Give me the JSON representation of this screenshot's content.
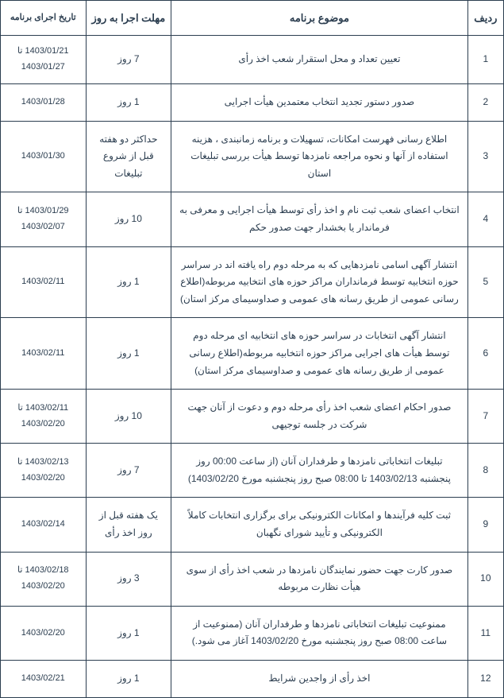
{
  "headers": {
    "num": "ردیف",
    "subject": "موضوع برنامه",
    "deadline": "مهلت اجرا به روز",
    "date": "تاریخ اجرای برنامه"
  },
  "rows": [
    {
      "num": "1",
      "subject": "تعیین تعداد و محل استقرار شعب اخذ رأی",
      "deadline": "7 روز",
      "date": "1403/01/21 تا 1403/01/27"
    },
    {
      "num": "2",
      "subject": "صدور دستور تجدید انتخاب معتمدین هیأت اجرایی",
      "deadline": "1 روز",
      "date": "1403/01/28"
    },
    {
      "num": "3",
      "subject": "اطلاع رسانی فهرست امکانات، تسهیلات و برنامه زمانبندی ، هزینه استفاده از آنها و نحوه مراجعه نامزدها توسط هیأت بررسی تبلیغات استان",
      "deadline": "حداکثر دو هفته قبل از شروع تبلیغات",
      "date": "1403/01/30"
    },
    {
      "num": "4",
      "subject": "انتخاب اعضای شعب ثبت نام و اخذ رأی توسط هیأت اجرایی و معرفی به فرماندار یا بخشدار جهت صدور حکم",
      "deadline": "10 روز",
      "date": "1403/01/29 تا 1403/02/07"
    },
    {
      "num": "5",
      "subject": "انتشار آگهی اسامی نامزدهایی که به مرحله دوم راه یافته اند در سراسر حوزه انتخابیه توسط فرمانداران مراکز حوزه های انتخابیه مربوطه(اطلاع رسانی عمومی از طریق رسانه های عمومی و صداوسیمای مرکز استان)",
      "deadline": "1 روز",
      "date": "1403/02/11"
    },
    {
      "num": "6",
      "subject": "انتشار آگهی انتخابات در سراسر حوزه های انتخابیه ای مرحله دوم توسط هیأت های اجرایی مراکز حوزه انتخابیه مربوطه(اطلاع رسانی عمومی از طریق رسانه های عمومی و صداوسیمای مرکز استان)",
      "deadline": "1 روز",
      "date": "1403/02/11"
    },
    {
      "num": "7",
      "subject": "صدور احکام اعضای شعب اخذ رأی مرحله دوم و دعوت از آنان جهت شرکت در جلسه توجیهی",
      "deadline": "10 روز",
      "date": "1403/02/11 تا 1403/02/20"
    },
    {
      "num": "8",
      "subject": "تبلیغات انتخاباتی نامزدها و طرفداران آنان (از ساعت 00:00 روز پنجشنبه 1403/02/13 تا 08:00 صبح روز پنجشنبه مورخ 1403/02/20)",
      "deadline": "7 روز",
      "date": "1403/02/13 تا 1403/02/20"
    },
    {
      "num": "9",
      "subject": "ثبت کلیه فرآیندها و امکانات الکترونیکی برای برگزاری انتخابات کاملاً الکترونیکی و تأیید شورای نگهبان",
      "deadline": "یک هفته قبل از روز اخذ رأی",
      "date": "1403/02/14"
    },
    {
      "num": "10",
      "subject": "صدور کارت جهت حضور نمایندگان نامزدها در شعب اخذ رأی از سوی هیأت نظارت مربوطه",
      "deadline": "3 روز",
      "date": "1403/02/18 تا 1403/02/20"
    },
    {
      "num": "11",
      "subject": "ممنوعیت تبلیغات انتخاباتی نامزدها و طرفداران آنان (ممنوعیت از ساعت 08:00 صبح روز پنجشنبه مورخ 1403/02/20 آغاز می شود.)",
      "deadline": "1 روز",
      "date": "1403/02/20"
    },
    {
      "num": "12",
      "subject": "اخذ رأی از واجدین شرایط",
      "deadline": "1 روز",
      "date": "1403/02/21"
    }
  ]
}
